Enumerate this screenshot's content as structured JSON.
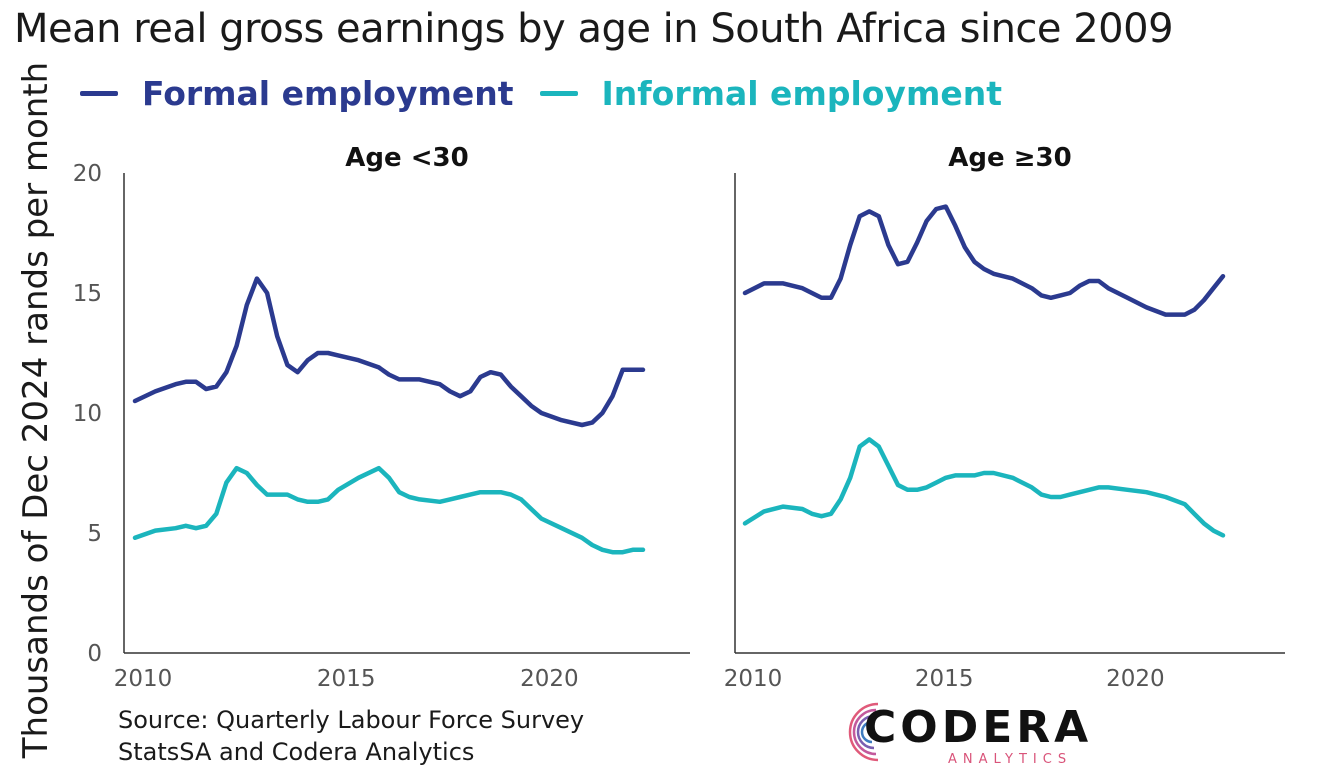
{
  "title": "Mean real gross earnings by age in South Africa since 2009",
  "legend": [
    {
      "label": "Formal employment",
      "color": "#2b3a8f"
    },
    {
      "label": "Informal employment",
      "color": "#1bb5bd"
    }
  ],
  "ylabel": "Thousands of Dec 2024 rands per month",
  "source": {
    "line1": "Source: Quarterly Labour Force Survey",
    "line2": "StatsSA and Codera Analytics"
  },
  "logo": {
    "name": "CODERA",
    "sub": "ANALYTICS",
    "icon": "codera-logo-icon"
  },
  "chart_data": [
    {
      "type": "line",
      "title": "Age <30",
      "xlabel": "",
      "ylabel": "Thousands of Dec 2024 rands per month",
      "ylim": [
        0,
        20
      ],
      "yticks": [
        0,
        5,
        10,
        15,
        20
      ],
      "xlim": [
        2010,
        2023
      ],
      "xticks": [
        2010,
        2015,
        2020
      ],
      "grid": false,
      "x": [
        2010.0,
        2010.5,
        2011.0,
        2011.25,
        2011.5,
        2011.75,
        2012.0,
        2012.25,
        2012.5,
        2012.75,
        2013.0,
        2013.25,
        2013.5,
        2013.75,
        2014.0,
        2014.25,
        2014.5,
        2014.75,
        2015.0,
        2015.5,
        2016.0,
        2016.25,
        2016.5,
        2016.75,
        2017.0,
        2017.5,
        2017.75,
        2018.0,
        2018.25,
        2018.5,
        2018.75,
        2019.0,
        2019.25,
        2019.5,
        2019.75,
        2020.0,
        2020.5,
        2021.0,
        2021.25,
        2021.5,
        2021.75,
        2022.0,
        2022.25,
        2022.5
      ],
      "series": [
        {
          "name": "Formal employment",
          "color": "#2b3a8f",
          "values": [
            10.5,
            10.9,
            11.2,
            11.3,
            11.3,
            11.0,
            11.1,
            11.7,
            12.8,
            14.5,
            15.6,
            15.0,
            13.2,
            12.0,
            11.7,
            12.2,
            12.5,
            12.5,
            12.4,
            12.2,
            11.9,
            11.6,
            11.4,
            11.4,
            11.4,
            11.2,
            10.9,
            10.7,
            10.9,
            11.5,
            11.7,
            11.6,
            11.1,
            10.7,
            10.3,
            10.0,
            9.7,
            9.5,
            9.6,
            10.0,
            10.7,
            11.8,
            11.8,
            11.8
          ]
        },
        {
          "name": "Informal employment",
          "color": "#1bb5bd",
          "values": [
            4.8,
            5.1,
            5.2,
            5.3,
            5.2,
            5.3,
            5.8,
            7.1,
            7.7,
            7.5,
            7.0,
            6.6,
            6.6,
            6.6,
            6.4,
            6.3,
            6.3,
            6.4,
            6.8,
            7.3,
            7.7,
            7.3,
            6.7,
            6.5,
            6.4,
            6.3,
            6.4,
            6.5,
            6.6,
            6.7,
            6.7,
            6.7,
            6.6,
            6.4,
            6.0,
            5.6,
            5.2,
            4.8,
            4.5,
            4.3,
            4.2,
            4.2,
            4.3,
            4.3
          ]
        }
      ]
    },
    {
      "type": "line",
      "title": "Age ≥30",
      "xlabel": "",
      "ylabel": "",
      "ylim": [
        0,
        20
      ],
      "yticks": [
        0,
        5,
        10,
        15,
        20
      ],
      "xlim": [
        2010,
        2023
      ],
      "xticks": [
        2010,
        2015,
        2020
      ],
      "grid": false,
      "x": [
        2010.0,
        2010.5,
        2011.0,
        2011.5,
        2011.75,
        2012.0,
        2012.25,
        2012.5,
        2012.75,
        2013.0,
        2013.25,
        2013.5,
        2013.75,
        2014.0,
        2014.25,
        2014.5,
        2014.75,
        2015.0,
        2015.25,
        2015.5,
        2015.75,
        2016.0,
        2016.25,
        2016.5,
        2017.0,
        2017.5,
        2017.75,
        2018.0,
        2018.25,
        2018.5,
        2018.75,
        2019.0,
        2019.25,
        2019.5,
        2020.0,
        2020.5,
        2021.0,
        2021.5,
        2021.75,
        2022.0,
        2022.25,
        2022.5
      ],
      "series": [
        {
          "name": "Formal employment",
          "color": "#2b3a8f",
          "values": [
            15.0,
            15.4,
            15.4,
            15.2,
            15.0,
            14.8,
            14.8,
            15.6,
            17.0,
            18.2,
            18.4,
            18.2,
            17.0,
            16.2,
            16.3,
            17.1,
            18.0,
            18.5,
            18.6,
            17.8,
            16.9,
            16.3,
            16.0,
            15.8,
            15.6,
            15.2,
            14.9,
            14.8,
            14.9,
            15.0,
            15.3,
            15.5,
            15.5,
            15.2,
            14.8,
            14.4,
            14.1,
            14.1,
            14.3,
            14.7,
            15.2,
            15.7
          ]
        },
        {
          "name": "Informal employment",
          "color": "#1bb5bd",
          "values": [
            5.4,
            5.9,
            6.1,
            6.0,
            5.8,
            5.7,
            5.8,
            6.4,
            7.3,
            8.6,
            8.9,
            8.6,
            7.8,
            7.0,
            6.8,
            6.8,
            6.9,
            7.1,
            7.3,
            7.4,
            7.4,
            7.4,
            7.5,
            7.5,
            7.3,
            6.9,
            6.6,
            6.5,
            6.5,
            6.6,
            6.7,
            6.8,
            6.9,
            6.9,
            6.8,
            6.7,
            6.5,
            6.2,
            5.8,
            5.4,
            5.1,
            4.9
          ]
        }
      ]
    }
  ]
}
